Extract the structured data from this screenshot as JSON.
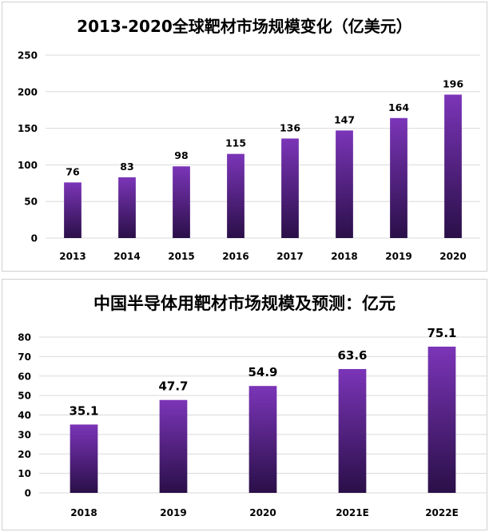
{
  "chart_data": [
    {
      "type": "bar",
      "title": "2013-2020全球靶材市场规模变化（亿美元）",
      "categories": [
        "2013",
        "2014",
        "2015",
        "2016",
        "2017",
        "2018",
        "2019",
        "2020"
      ],
      "values": [
        76,
        83,
        98,
        115,
        136,
        147,
        164,
        196
      ],
      "ylim": [
        0,
        250
      ],
      "yticks": [
        "0",
        "50",
        "100",
        "150",
        "200",
        "250"
      ],
      "grid": true,
      "bar_color_top": "#7b35b8",
      "bar_color_bottom": "#2a0f48"
    },
    {
      "type": "bar",
      "title": "中国半导体用靶材市场规模及预测：亿元",
      "categories": [
        "2018",
        "2019",
        "2020",
        "2021E",
        "2022E"
      ],
      "values": [
        35.1,
        47.7,
        54.9,
        63.6,
        75.1
      ],
      "ylim": [
        0,
        80
      ],
      "yticks": [
        "0",
        "10",
        "20",
        "30",
        "40",
        "50",
        "60",
        "70",
        "80"
      ],
      "grid": true,
      "bar_color_top": "#7b35b8",
      "bar_color_bottom": "#2a0f48"
    }
  ]
}
